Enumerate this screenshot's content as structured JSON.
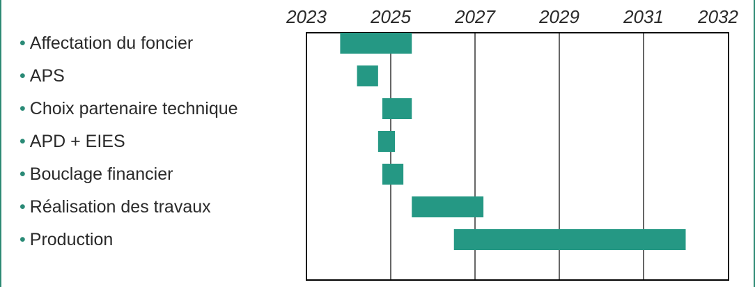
{
  "colors": {
    "bar": "#259884",
    "frame_accent": "#2e8a74"
  },
  "chart_data": {
    "type": "gantt",
    "title": "",
    "xlabel": "",
    "ylabel": "",
    "xlim": [
      2023.0,
      2032.0
    ],
    "x_ticks": [
      "2023",
      "2025",
      "2027",
      "2029",
      "2031",
      "2032"
    ],
    "grid": "vertical",
    "tasks": [
      {
        "label": "Affectation du foncier",
        "start": 2023.8,
        "end": 2025.5
      },
      {
        "label": "APS",
        "start": 2024.2,
        "end": 2024.7
      },
      {
        "label": "Choix partenaire technique",
        "start": 2024.8,
        "end": 2025.5
      },
      {
        "label": "APD + EIES",
        "start": 2024.7,
        "end": 2025.1
      },
      {
        "label": "Bouclage financier",
        "start": 2024.8,
        "end": 2025.3
      },
      {
        "label": "Réalisation des travaux",
        "start": 2025.5,
        "end": 2027.2
      },
      {
        "label": "Production",
        "start": 2026.5,
        "end": 2032.0
      }
    ]
  }
}
